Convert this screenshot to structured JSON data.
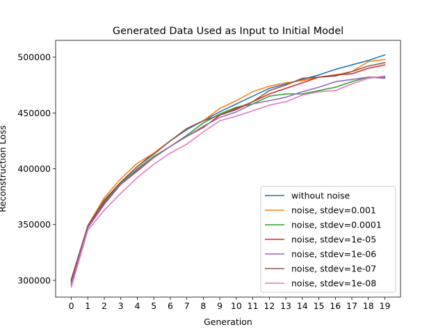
{
  "chart_data": {
    "type": "line",
    "title": "Generated Data Used as Input to Initial Model",
    "xlabel": "Generation",
    "ylabel": "Reconstruction Loss",
    "xlim": [
      -0.95,
      19.95
    ],
    "ylim": [
      285000,
      515000
    ],
    "x": [
      0,
      1,
      2,
      3,
      4,
      5,
      6,
      7,
      8,
      9,
      10,
      11,
      12,
      13,
      14,
      15,
      16,
      17,
      18,
      19
    ],
    "xticks": [
      0,
      1,
      2,
      3,
      4,
      5,
      6,
      7,
      8,
      9,
      10,
      11,
      12,
      13,
      14,
      15,
      16,
      17,
      18,
      19
    ],
    "yticks": [
      300000,
      350000,
      400000,
      450000,
      500000
    ],
    "ytick_labels": [
      "300000",
      "350000",
      "400000",
      "450000",
      "500000"
    ],
    "grid": false,
    "legend_position": "lower-right",
    "series": [
      {
        "name": "without noise",
        "color": "#1f77b4",
        "values": [
          299000,
          348000,
          371000,
          388000,
          402000,
          414000,
          425000,
          435000,
          443000,
          451000,
          458000,
          465000,
          472000,
          476000,
          480000,
          484000,
          489000,
          493000,
          497000,
          502000
        ]
      },
      {
        "name": "noise, stdev=0.001",
        "color": "#ff7f0e",
        "values": [
          297000,
          349000,
          374000,
          391000,
          405000,
          414000,
          425000,
          436000,
          443000,
          454000,
          461000,
          469000,
          474000,
          477000,
          479000,
          482000,
          484000,
          487000,
          496000,
          498000
        ]
      },
      {
        "name": "noise, stdev=0.0001",
        "color": "#2ca02c",
        "values": [
          298000,
          348000,
          370000,
          387000,
          400000,
          411000,
          420000,
          430000,
          441000,
          449000,
          455000,
          458000,
          465000,
          467000,
          467000,
          470000,
          473000,
          478000,
          482000,
          482000
        ]
      },
      {
        "name": "noise, stdev=1e-05",
        "color": "#d62728",
        "values": [
          300000,
          348000,
          369000,
          386000,
          398000,
          410000,
          420000,
          429000,
          437000,
          448000,
          454000,
          460000,
          467000,
          472000,
          477000,
          482000,
          484000,
          485000,
          490000,
          493000
        ]
      },
      {
        "name": "noise, stdev=1e-06",
        "color": "#9467bd",
        "values": [
          296000,
          347000,
          368000,
          386000,
          399000,
          410000,
          420000,
          429000,
          438000,
          446000,
          451000,
          458000,
          461000,
          464000,
          469000,
          473000,
          478000,
          480000,
          482000,
          481000
        ]
      },
      {
        "name": "noise, stdev=1e-07",
        "color": "#8c564b",
        "values": [
          301000,
          349000,
          372000,
          388000,
          402000,
          413000,
          425000,
          436000,
          443000,
          448000,
          453000,
          460000,
          470000,
          475000,
          481000,
          482000,
          483000,
          487000,
          492000,
          495000
        ]
      },
      {
        "name": "noise, stdev=1e-08",
        "color": "#e377c2",
        "values": [
          294000,
          345000,
          363000,
          378000,
          392000,
          404000,
          414000,
          422000,
          433000,
          443000,
          447000,
          452000,
          457000,
          460000,
          466000,
          469000,
          470000,
          476000,
          481000,
          483000
        ]
      }
    ]
  }
}
